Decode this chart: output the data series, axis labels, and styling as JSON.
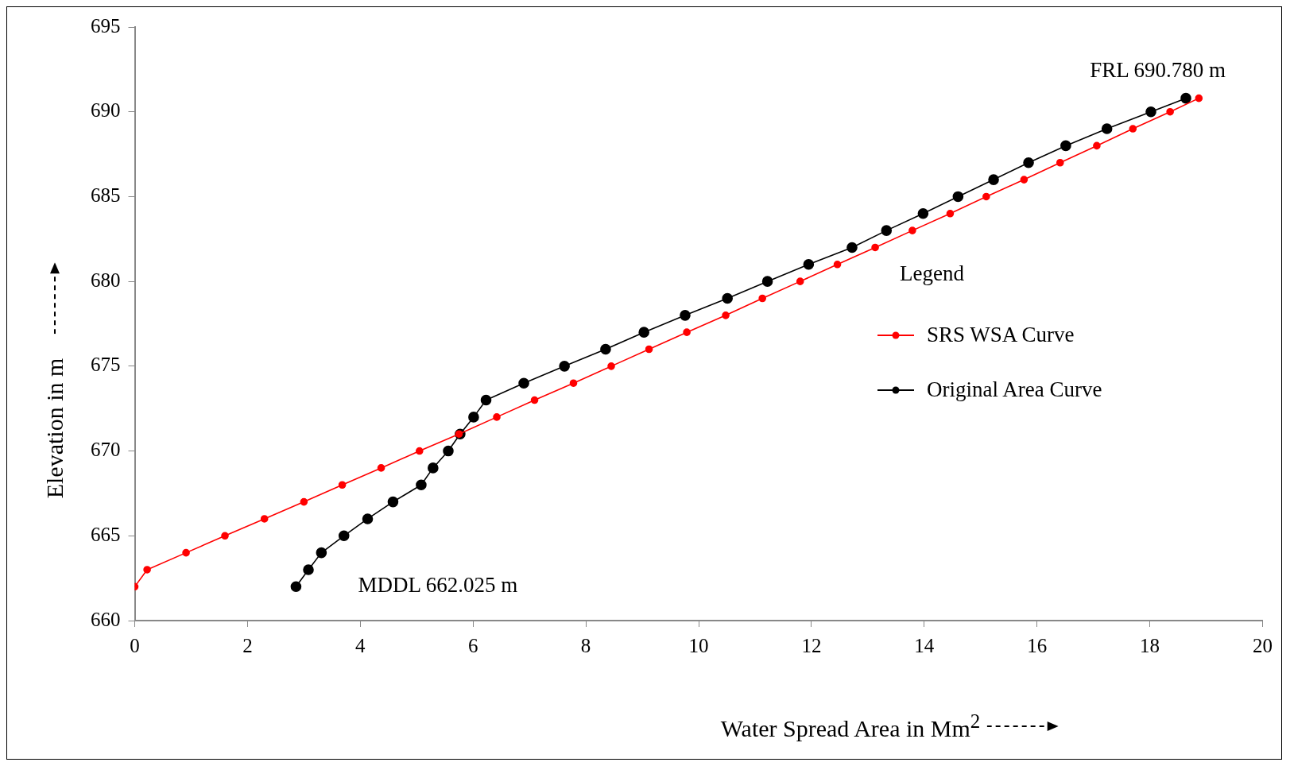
{
  "chart_data": {
    "type": "line",
    "xlabel": "Water Spread Area in Mm$^{2}$",
    "ylabel": "Elevation in m",
    "legend_title": "Legend",
    "legend": "right",
    "marker": "circle",
    "line_style": "solid",
    "grid": false,
    "xlim": [
      0,
      20
    ],
    "xticks": [
      0,
      2,
      4,
      6,
      8,
      10,
      12,
      14,
      16,
      18,
      20
    ],
    "ylim": [
      660,
      695
    ],
    "yticks": [
      660,
      665,
      670,
      675,
      680,
      685,
      690,
      695
    ],
    "series": [
      {
        "name": "SRS WSA Curve",
        "color": "#ff0000",
        "x": [
          0,
          0.22,
          0.91,
          1.6,
          2.3,
          3.0,
          3.68,
          4.37,
          5.05,
          5.75,
          6.42,
          7.09,
          7.78,
          8.45,
          9.12,
          9.79,
          10.48,
          11.13,
          11.8,
          12.46,
          13.13,
          13.79,
          14.46,
          15.1,
          15.77,
          16.41,
          17.06,
          17.7,
          18.36,
          18.87
        ],
        "values": [
          662,
          663,
          664,
          665,
          666,
          667,
          668,
          669,
          670,
          671,
          672,
          673,
          674,
          675,
          676,
          677,
          678,
          679,
          680,
          681,
          682,
          683,
          684,
          685,
          686,
          687,
          688,
          689,
          690,
          690.8
        ]
      },
      {
        "name": "Original Area Curve",
        "color": "#000000",
        "x": [
          2.86,
          3.08,
          3.31,
          3.71,
          4.13,
          4.58,
          5.08,
          5.29,
          5.56,
          5.77,
          6.01,
          6.23,
          6.9,
          7.62,
          8.35,
          9.03,
          9.76,
          10.51,
          11.22,
          11.95,
          12.72,
          13.33,
          13.98,
          14.6,
          15.23,
          15.85,
          16.51,
          17.24,
          18.02,
          18.64
        ],
        "values": [
          662,
          663,
          664,
          665,
          666,
          667,
          668,
          669,
          670,
          671,
          672,
          673,
          674,
          675,
          676,
          677,
          678,
          679,
          680,
          681,
          682,
          683,
          684,
          685,
          686,
          687,
          688,
          689,
          690,
          690.8
        ]
      }
    ],
    "annotations": [
      {
        "text": "MDDL 662.025 m",
        "x": 2.86,
        "y": 662.025
      },
      {
        "text": "FRL 690.780 m",
        "x": 18.64,
        "y": 690.78
      }
    ]
  }
}
